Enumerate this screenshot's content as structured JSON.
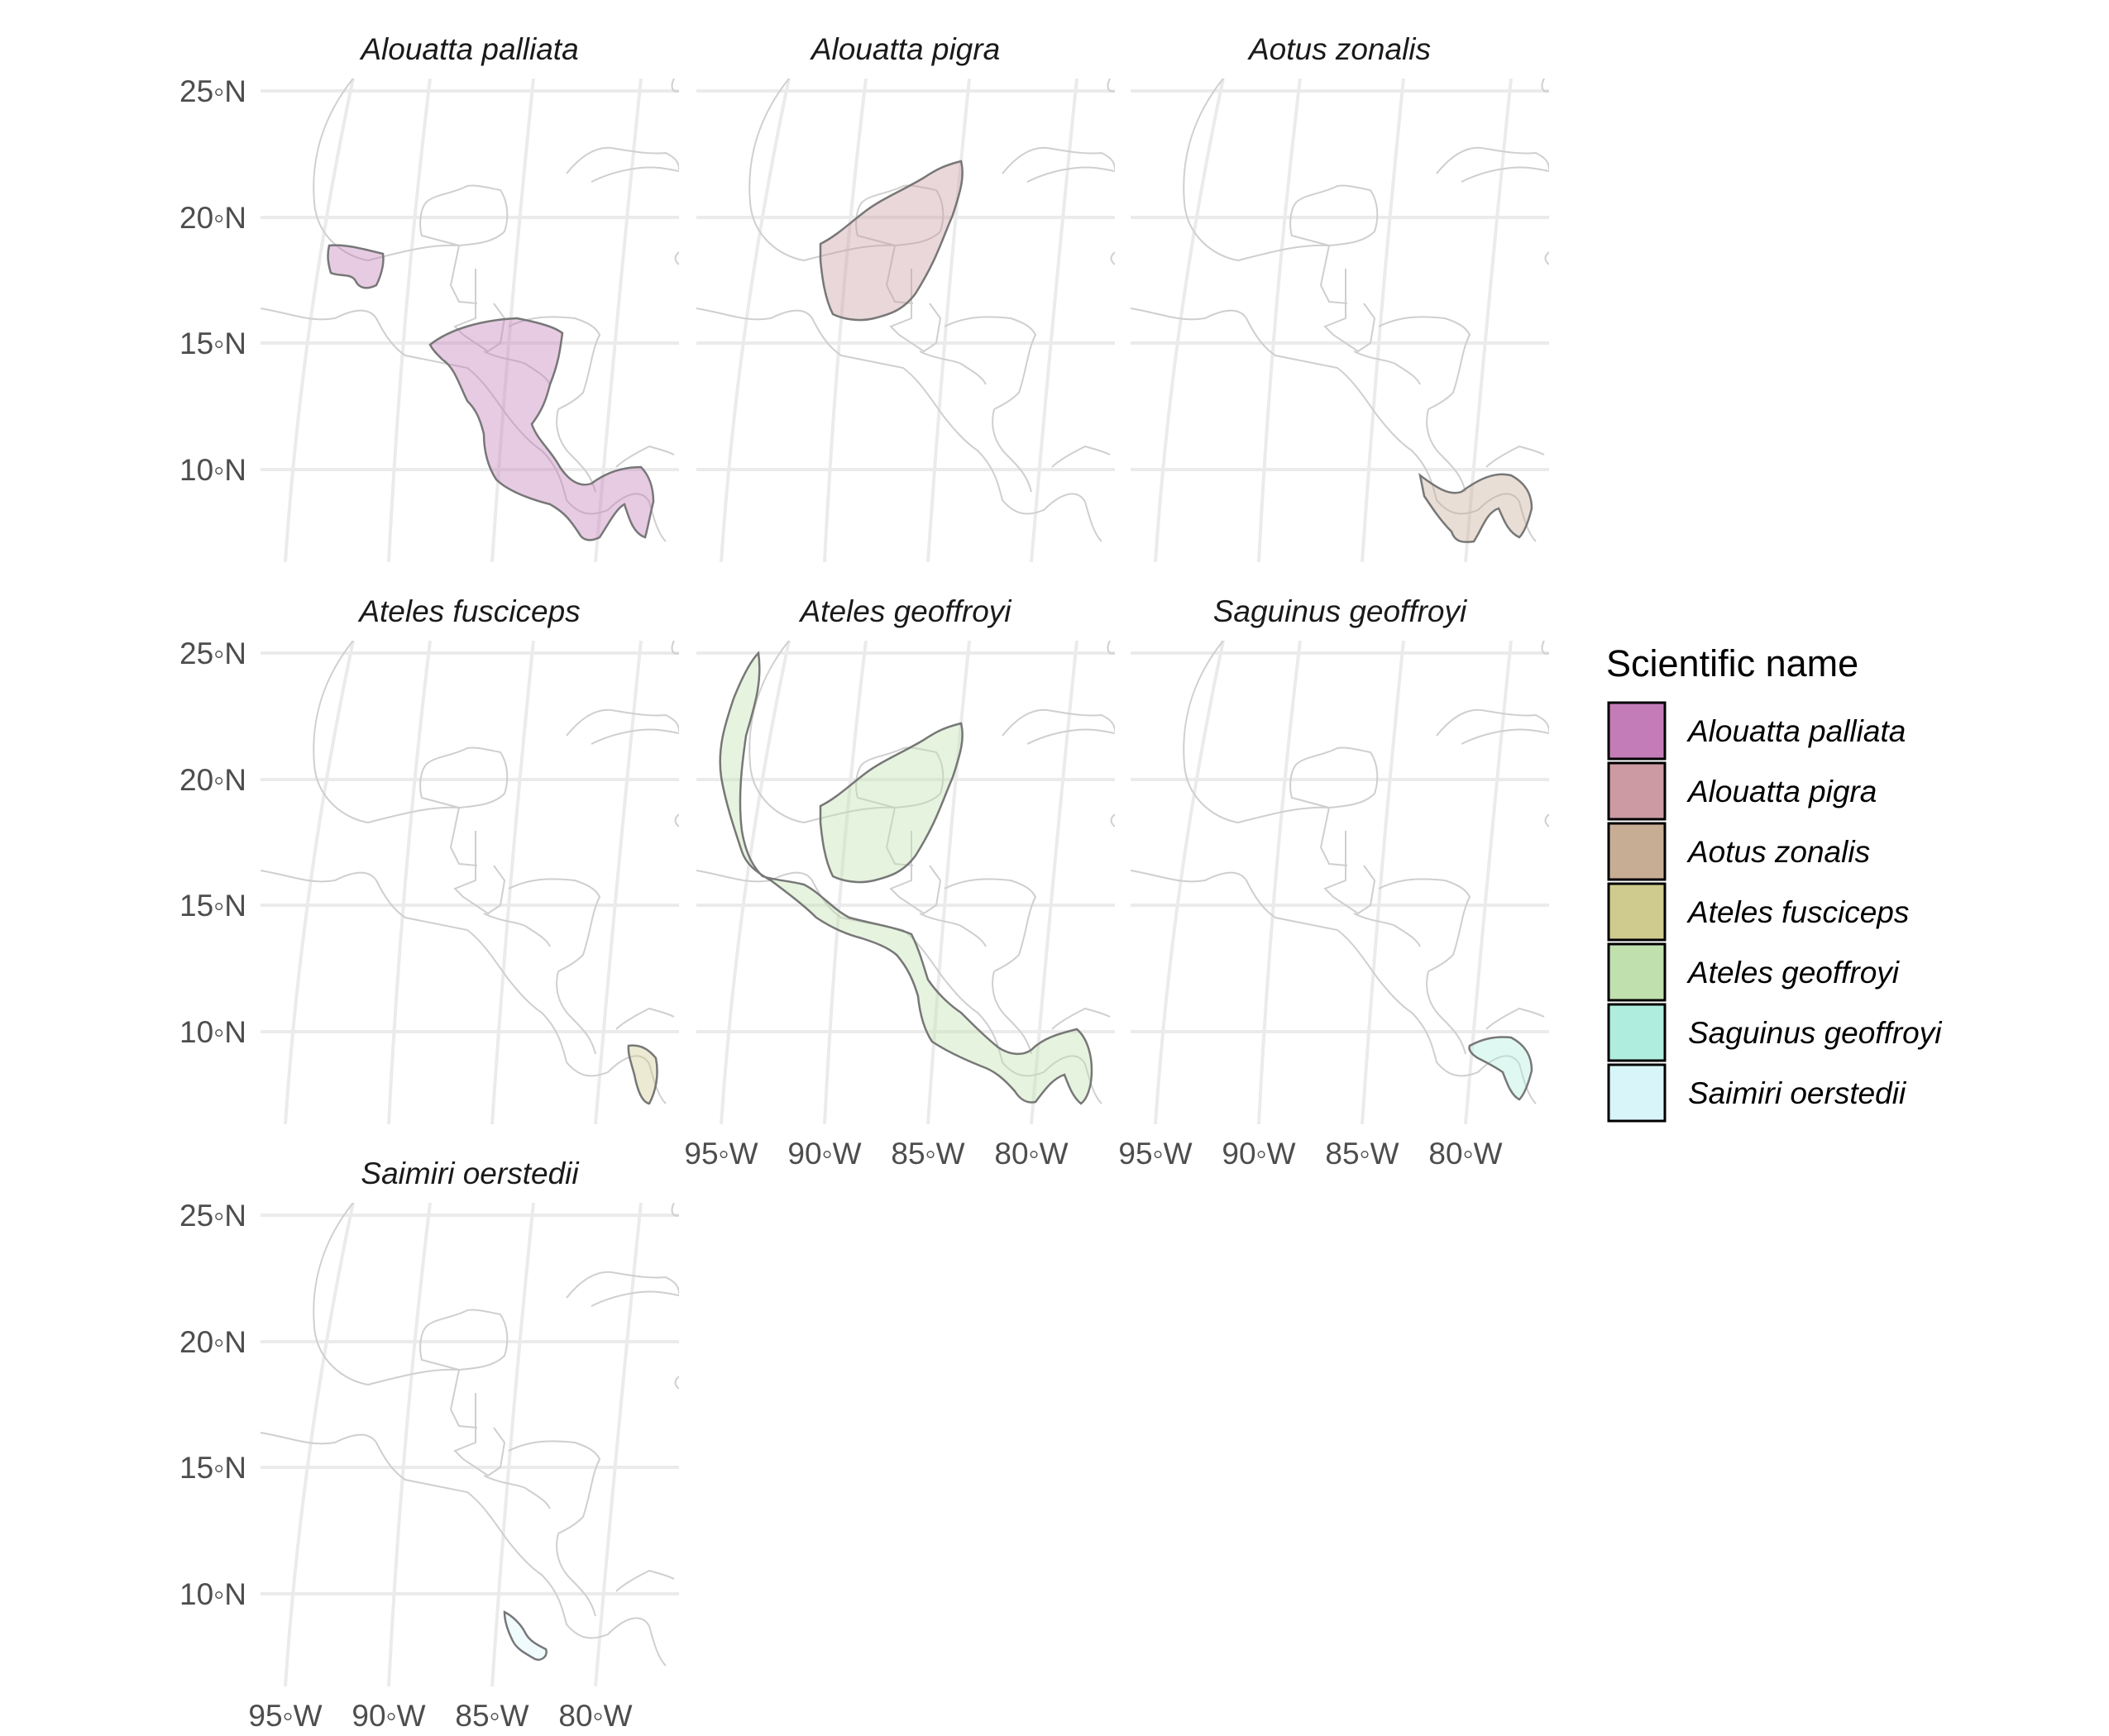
{
  "chart_data": {
    "type": "map",
    "layout": "faceted choropleth, 3 columns",
    "panels": [
      {
        "title": "Alouatta palliata",
        "species": "Alouatta palliata"
      },
      {
        "title": "Alouatta pigra",
        "species": "Alouatta pigra"
      },
      {
        "title": "Aotus zonalis",
        "species": "Aotus zonalis"
      },
      {
        "title": "Ateles fusciceps",
        "species": "Ateles fusciceps"
      },
      {
        "title": "Ateles geoffroyi",
        "species": "Ateles geoffroyi"
      },
      {
        "title": "Saguinus geoffroyi",
        "species": "Saguinus geoffroyi"
      },
      {
        "title": "Saimiri oerstedii",
        "species": "Saimiri oerstedii"
      }
    ],
    "y_ticks": [
      "25◦N",
      "20◦N",
      "15◦N",
      "10◦N"
    ],
    "x_ticks": [
      "95◦W",
      "90◦W",
      "85◦W",
      "80◦W"
    ],
    "legend": {
      "title": "Scientific name",
      "placement": "right",
      "entries": [
        {
          "label": "Alouatta palliata",
          "color": "#c47cb8"
        },
        {
          "label": "Alouatta pigra",
          "color": "#cb9aa3"
        },
        {
          "label": "Aotus zonalis",
          "color": "#c8ad95"
        },
        {
          "label": "Ateles fusciceps",
          "color": "#cfcb8e"
        },
        {
          "label": "Ateles geoffroyi",
          "color": "#c0e0ae"
        },
        {
          "label": "Saguinus geoffroyi",
          "color": "#afeedf"
        },
        {
          "label": "Saimiri oerstedii",
          "color": "#d8f5fa"
        }
      ]
    },
    "grid": true,
    "colors": {
      "graticule": "#ebebeb",
      "land_outline": "#cfcfcf",
      "range_outline": "#777777"
    }
  }
}
